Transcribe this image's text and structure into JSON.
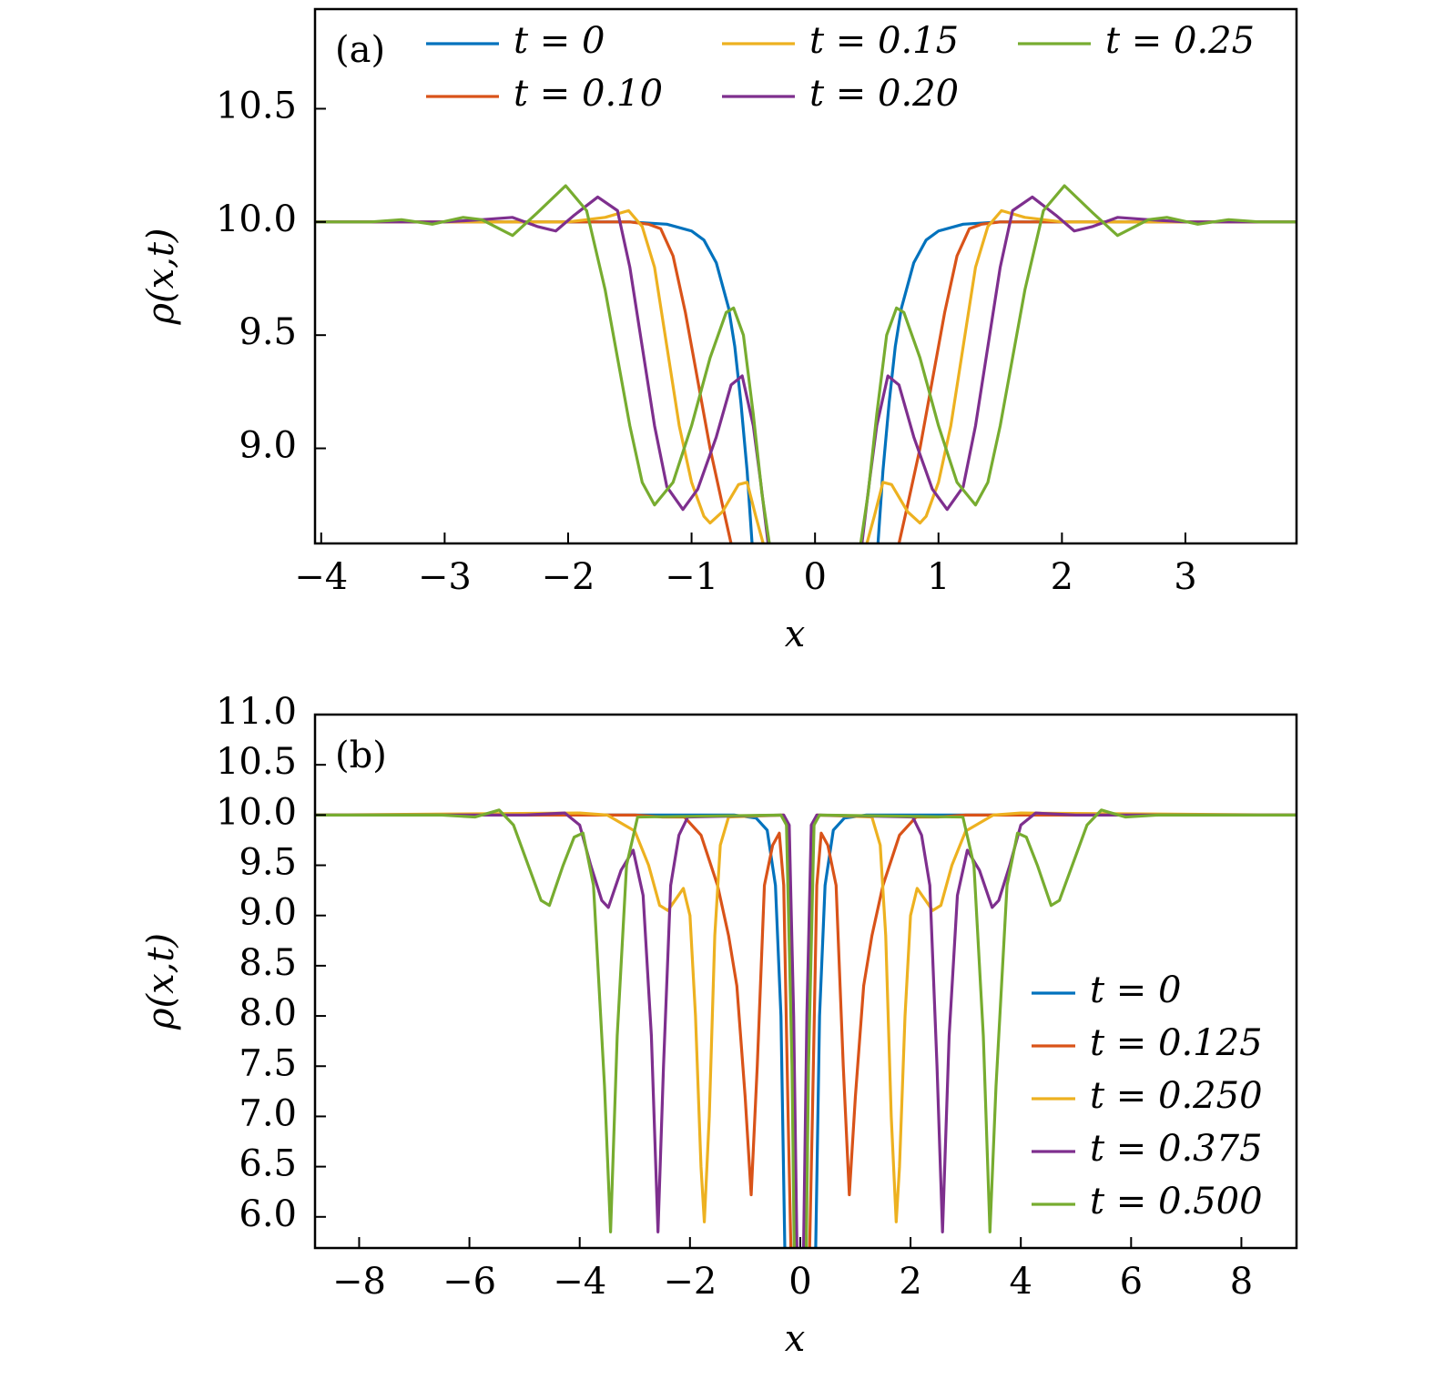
{
  "chart_data": [
    {
      "type": "line",
      "annotation": "(a)",
      "xlabel": "x",
      "ylabel": "ρ(x,t)",
      "xlim": [
        -4.05,
        3.9
      ],
      "ylim": [
        8.58,
        10.94
      ],
      "xticks": [
        {
          "value": -4,
          "label": "−4"
        },
        {
          "value": -3,
          "label": "−3"
        },
        {
          "value": -2,
          "label": "−2"
        },
        {
          "value": -1,
          "label": "−1"
        },
        0,
        1,
        2,
        3
      ],
      "yticks": [
        {
          "value": 9,
          "label": "9.0"
        },
        9.5,
        {
          "value": 10,
          "label": "10.0"
        },
        10.5
      ],
      "legend": "upper",
      "series": [
        {
          "name": "t = 0",
          "color": "#0072bd",
          "x": [
            -4.05,
            -1.5,
            -1.2,
            -1.0,
            -0.9,
            -0.8,
            -0.7,
            -0.65,
            -0.6,
            -0.55,
            -0.51,
            0,
            0.51,
            0.55,
            0.6,
            0.65,
            0.7,
            0.8,
            0.9,
            1.0,
            1.2,
            1.5,
            3.9
          ],
          "values": [
            10,
            10,
            9.99,
            9.96,
            9.92,
            9.82,
            9.62,
            9.45,
            9.2,
            8.9,
            8.58,
            null,
            8.58,
            8.9,
            9.2,
            9.45,
            9.62,
            9.82,
            9.92,
            9.96,
            9.99,
            10,
            10
          ]
        },
        {
          "name": "t = 0.10",
          "color": "#d95319",
          "x": [
            -4.05,
            -1.7,
            -1.5,
            -1.35,
            -1.25,
            -1.15,
            -1.05,
            -0.95,
            -0.85,
            -0.75,
            -0.68,
            0,
            0.68,
            0.75,
            0.85,
            0.95,
            1.05,
            1.15,
            1.25,
            1.35,
            1.5,
            1.7,
            3.9
          ],
          "values": [
            10,
            10,
            10,
            9.99,
            9.97,
            9.85,
            9.6,
            9.3,
            9.0,
            8.75,
            8.58,
            null,
            8.58,
            8.75,
            9.0,
            9.3,
            9.6,
            9.85,
            9.97,
            9.99,
            10,
            10,
            10
          ]
        },
        {
          "name": "t = 0.15",
          "color": "#edb120",
          "x": [
            -4.05,
            -2.0,
            -1.7,
            -1.51,
            -1.4,
            -1.3,
            -1.2,
            -1.1,
            -1.0,
            -0.9,
            -0.85,
            -0.75,
            -0.62,
            -0.55,
            -0.48,
            -0.42,
            0,
            0.42,
            0.48,
            0.55,
            0.62,
            0.75,
            0.85,
            0.9,
            1.0,
            1.1,
            1.2,
            1.3,
            1.4,
            1.51,
            1.7,
            2.0,
            3.9
          ],
          "values": [
            10,
            10,
            10.02,
            10.05,
            9.98,
            9.8,
            9.45,
            9.1,
            8.85,
            8.7,
            8.67,
            8.72,
            8.84,
            8.85,
            8.7,
            8.58,
            null,
            8.58,
            8.7,
            8.85,
            8.84,
            8.72,
            8.67,
            8.7,
            8.85,
            9.1,
            9.45,
            9.8,
            9.98,
            10.05,
            10.02,
            10,
            10
          ]
        },
        {
          "name": "t = 0.20",
          "color": "#7e2f8e",
          "x": [
            -4.05,
            -3.0,
            -2.7,
            -2.45,
            -2.25,
            -2.1,
            -1.95,
            -1.76,
            -1.6,
            -1.5,
            -1.4,
            -1.3,
            -1.2,
            -1.07,
            -0.95,
            -0.8,
            -0.68,
            -0.59,
            -0.5,
            -0.44,
            -0.38,
            0,
            0.38,
            0.44,
            0.5,
            0.59,
            0.68,
            0.8,
            0.95,
            1.07,
            1.2,
            1.3,
            1.4,
            1.5,
            1.6,
            1.76,
            1.95,
            2.1,
            2.25,
            2.45,
            2.7,
            3.0,
            3.9
          ],
          "values": [
            10,
            10,
            10.01,
            10.02,
            9.98,
            9.96,
            10.03,
            10.11,
            10.05,
            9.8,
            9.45,
            9.1,
            8.83,
            8.73,
            8.82,
            9.05,
            9.28,
            9.32,
            9.1,
            8.85,
            8.58,
            null,
            8.58,
            8.85,
            9.1,
            9.32,
            9.28,
            9.05,
            8.82,
            8.73,
            8.83,
            9.1,
            9.45,
            9.8,
            10.05,
            10.11,
            10.03,
            9.96,
            9.98,
            10.02,
            10.01,
            10,
            10
          ]
        },
        {
          "name": "t = 0.25",
          "color": "#77ac30",
          "x": [
            -4.05,
            -3.6,
            -3.35,
            -3.1,
            -2.85,
            -2.7,
            -2.45,
            -2.25,
            -2.02,
            -1.85,
            -1.7,
            -1.6,
            -1.5,
            -1.4,
            -1.3,
            -1.15,
            -1.0,
            -0.85,
            -0.72,
            -0.66,
            -0.58,
            -0.5,
            -0.43,
            -0.37,
            0,
            0.37,
            0.43,
            0.5,
            0.58,
            0.66,
            0.72,
            0.85,
            1.0,
            1.15,
            1.3,
            1.4,
            1.5,
            1.6,
            1.7,
            1.85,
            2.02,
            2.25,
            2.45,
            2.7,
            2.85,
            3.1,
            3.35,
            3.6,
            3.9
          ],
          "values": [
            10,
            10,
            10.01,
            9.99,
            10.02,
            10.01,
            9.94,
            10.04,
            10.16,
            10.05,
            9.7,
            9.4,
            9.1,
            8.85,
            8.75,
            8.85,
            9.1,
            9.4,
            9.6,
            9.62,
            9.5,
            9.15,
            8.8,
            8.58,
            null,
            8.58,
            8.8,
            9.15,
            9.5,
            9.62,
            9.6,
            9.4,
            9.1,
            8.85,
            8.75,
            8.85,
            9.1,
            9.4,
            9.7,
            10.05,
            10.16,
            10.04,
            9.94,
            10.01,
            10.02,
            9.99,
            10.01,
            10,
            10
          ]
        }
      ]
    },
    {
      "type": "line",
      "annotation": "(b)",
      "xlabel": "x",
      "ylabel": "ρ(x,t)",
      "xlim": [
        -8.8,
        9.0
      ],
      "ylim": [
        5.69,
        11.0
      ],
      "xticks": [
        {
          "value": -8,
          "label": "−8"
        },
        {
          "value": -6,
          "label": "−6"
        },
        {
          "value": -4,
          "label": "−4"
        },
        {
          "value": -2,
          "label": "−2"
        },
        0,
        2,
        4,
        6,
        8
      ],
      "yticks": [
        {
          "value": 6,
          "label": "6.0"
        },
        6.5,
        {
          "value": 7,
          "label": "7.0"
        },
        7.5,
        {
          "value": 8,
          "label": "8.0"
        },
        8.5,
        {
          "value": 9,
          "label": "9.0"
        },
        9.5,
        {
          "value": 10,
          "label": "10.0"
        },
        10.5,
        {
          "value": 11,
          "label": "11.0"
        }
      ],
      "legend": "lower right",
      "series": [
        {
          "name": "t = 0",
          "color": "#0072bd",
          "x": [
            -8.8,
            -1.2,
            -0.8,
            -0.6,
            -0.45,
            -0.35,
            -0.28,
            0,
            0.28,
            0.35,
            0.45,
            0.6,
            0.8,
            1.2,
            9.0
          ],
          "values": [
            10,
            10,
            9.97,
            9.85,
            9.3,
            8.0,
            5.69,
            null,
            5.69,
            8.0,
            9.3,
            9.85,
            9.97,
            10,
            10
          ]
        },
        {
          "name": "t = 0.125",
          "color": "#d95319",
          "x": [
            -8.8,
            -3.0,
            -2.5,
            -2.1,
            -1.8,
            -1.5,
            -1.3,
            -1.15,
            -1.0,
            -0.89,
            -0.78,
            -0.65,
            -0.5,
            -0.38,
            -0.3,
            -0.22,
            -0.17,
            0,
            0.17,
            0.22,
            0.3,
            0.38,
            0.5,
            0.65,
            0.78,
            0.89,
            1.0,
            1.15,
            1.3,
            1.5,
            1.8,
            2.1,
            2.5,
            3.0,
            9.0
          ],
          "values": [
            10,
            10,
            9.98,
            9.98,
            9.8,
            9.3,
            8.8,
            8.3,
            7.2,
            6.22,
            7.5,
            9.3,
            9.7,
            9.82,
            9.3,
            7.0,
            5.69,
            null,
            5.69,
            7.0,
            9.3,
            9.82,
            9.7,
            9.3,
            7.5,
            6.22,
            7.2,
            8.3,
            8.8,
            9.3,
            9.8,
            9.98,
            9.98,
            10,
            10
          ]
        },
        {
          "name": "t = 0.250",
          "color": "#edb120",
          "x": [
            -8.8,
            -4.0,
            -3.5,
            -3.0,
            -2.75,
            -2.55,
            -2.4,
            -2.12,
            -2.0,
            -1.9,
            -1.8,
            -1.74,
            -1.65,
            -1.55,
            -1.45,
            -1.3,
            -0.3,
            -0.2,
            -0.12,
            -0.08,
            0,
            0.08,
            0.12,
            0.2,
            0.3,
            1.3,
            1.45,
            1.55,
            1.65,
            1.74,
            1.8,
            1.9,
            2.0,
            2.12,
            2.4,
            2.55,
            2.75,
            3.0,
            3.5,
            4.0,
            9.0
          ],
          "values": [
            10,
            10.02,
            10,
            9.84,
            9.5,
            9.1,
            9.05,
            9.27,
            9.0,
            8.0,
            6.5,
            5.95,
            7.0,
            8.8,
            9.7,
            9.98,
            10,
            9.8,
            7.5,
            5.69,
            null,
            5.69,
            7.5,
            9.8,
            10,
            9.98,
            9.7,
            8.8,
            7.0,
            5.95,
            6.5,
            8.0,
            9.0,
            9.27,
            9.05,
            9.1,
            9.5,
            9.84,
            10,
            10.02,
            10
          ]
        },
        {
          "name": "t = 0.375",
          "color": "#7e2f8e",
          "x": [
            -8.8,
            -5.0,
            -4.27,
            -4.0,
            -3.8,
            -3.6,
            -3.48,
            -3.25,
            -3.03,
            -2.85,
            -2.7,
            -2.58,
            -2.48,
            -2.35,
            -2.2,
            -2.04,
            -0.3,
            -0.2,
            -0.12,
            -0.06,
            0,
            0.06,
            0.12,
            0.2,
            0.3,
            2.04,
            2.2,
            2.35,
            2.48,
            2.58,
            2.7,
            2.85,
            3.03,
            3.25,
            3.48,
            3.6,
            3.8,
            4.0,
            4.27,
            5.0,
            9.0
          ],
          "values": [
            10,
            10,
            10.02,
            9.9,
            9.5,
            9.15,
            9.08,
            9.45,
            9.65,
            9.2,
            7.8,
            5.85,
            7.5,
            9.3,
            9.8,
            9.98,
            10,
            9.9,
            8.0,
            5.69,
            null,
            5.69,
            8.0,
            9.9,
            10,
            9.98,
            9.8,
            9.3,
            7.5,
            5.85,
            7.8,
            9.2,
            9.65,
            9.45,
            9.08,
            9.15,
            9.5,
            9.9,
            10.02,
            10,
            10
          ]
        },
        {
          "name": "t = 0.500",
          "color": "#77ac30",
          "x": [
            -8.8,
            -6.5,
            -5.9,
            -5.46,
            -5.2,
            -4.9,
            -4.7,
            -4.55,
            -4.3,
            -4.1,
            -3.94,
            -3.75,
            -3.55,
            -3.44,
            -3.32,
            -3.15,
            -2.95,
            -0.35,
            -0.25,
            -0.15,
            -0.11,
            0,
            0.11,
            0.15,
            0.25,
            0.35,
            2.95,
            3.15,
            3.32,
            3.44,
            3.55,
            3.75,
            3.94,
            4.1,
            4.3,
            4.55,
            4.7,
            4.9,
            5.2,
            5.46,
            5.9,
            6.5,
            9.0
          ],
          "values": [
            10,
            10,
            9.98,
            10.05,
            9.9,
            9.45,
            9.15,
            9.1,
            9.5,
            9.78,
            9.82,
            9.3,
            7.3,
            5.85,
            7.8,
            9.5,
            9.98,
            10,
            9.9,
            7.5,
            5.69,
            null,
            5.69,
            7.5,
            9.9,
            10,
            9.98,
            9.5,
            7.8,
            5.85,
            7.3,
            9.3,
            9.82,
            9.78,
            9.5,
            9.1,
            9.15,
            9.45,
            9.9,
            10.05,
            9.98,
            10,
            10
          ]
        }
      ]
    }
  ]
}
